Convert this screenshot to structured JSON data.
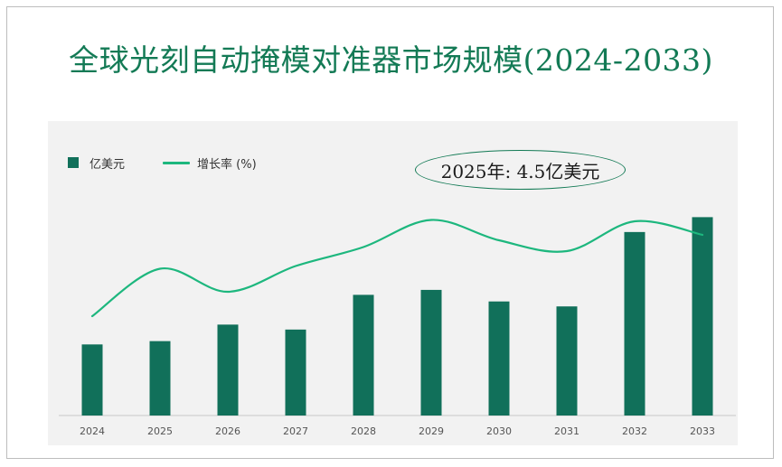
{
  "title": "全球光刻自动掩模对准器市场规模(2024-2033)",
  "legend": {
    "bar_label": "亿美元",
    "line_label": "增长率 (%)"
  },
  "annotation": "2025年: 4.5亿美元",
  "colors": {
    "bar": "#11705a",
    "line": "#1db77e",
    "title": "#137a55",
    "panel": "#f2f2f2"
  },
  "chart_data": {
    "type": "bar",
    "categories": [
      "2024",
      "2025",
      "2026",
      "2027",
      "2028",
      "2029",
      "2030",
      "2031",
      "2032",
      "2033"
    ],
    "series": [
      {
        "name": "亿美元",
        "type": "bar",
        "values": [
          4.3,
          4.5,
          5.5,
          5.2,
          7.3,
          7.6,
          6.9,
          6.6,
          11.1,
          12.0
        ]
      },
      {
        "name": "增长率 (%)",
        "type": "line",
        "values": [
          5.8,
          9.3,
          7.6,
          9.5,
          10.9,
          12.9,
          11.4,
          10.6,
          12.8,
          11.8
        ]
      }
    ],
    "xlabel": "",
    "ylabel": "",
    "legend_position": "top-left",
    "grid": false,
    "axis_labels_visible": false
  }
}
